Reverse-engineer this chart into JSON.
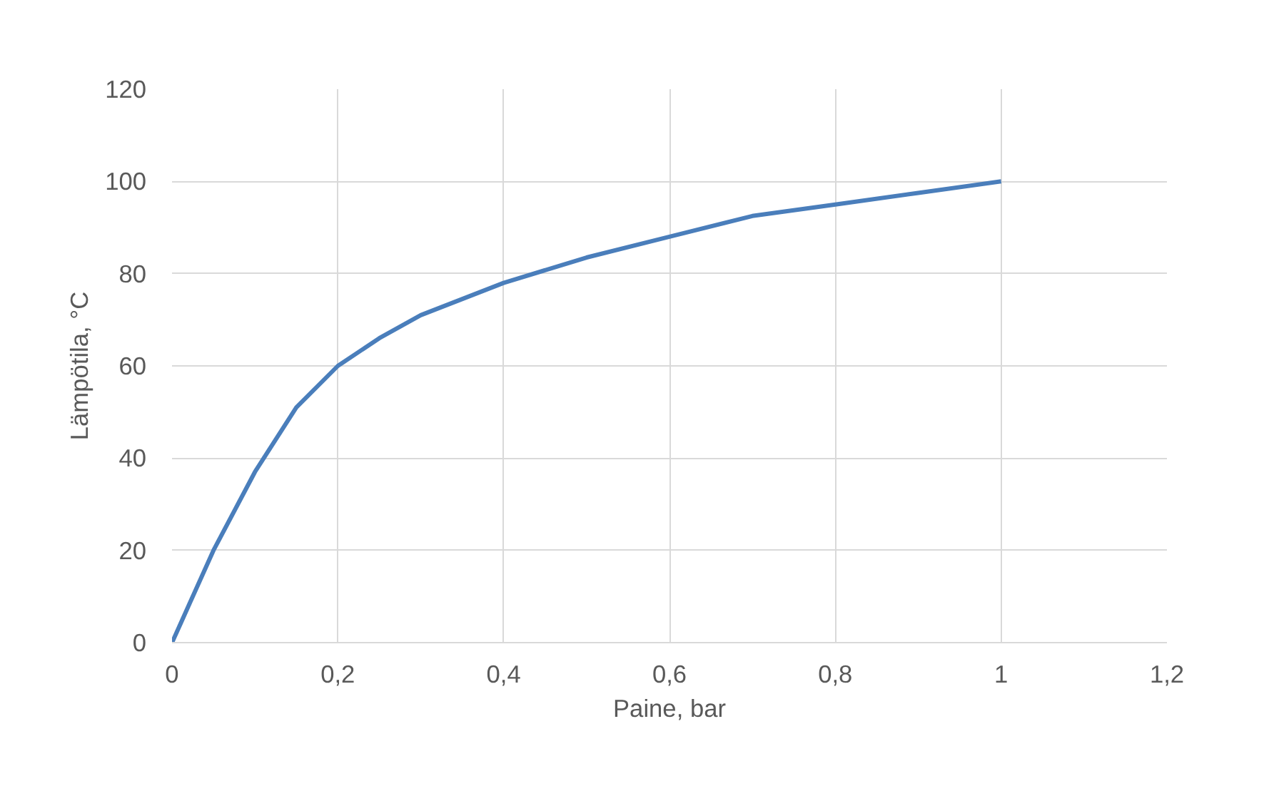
{
  "chart_data": {
    "type": "line",
    "xlabel": "Paine, bar",
    "ylabel": "Lämpötila, °C",
    "x": [
      0,
      0.02,
      0.05,
      0.1,
      0.15,
      0.2,
      0.25,
      0.3,
      0.4,
      0.5,
      0.6,
      0.7,
      0.8,
      0.9,
      1
    ],
    "series": [
      {
        "color": "#4a7ebb",
        "values": [
          0,
          8,
          20,
          37,
          51,
          60,
          66,
          71,
          78,
          83.5,
          88,
          92.5,
          95,
          97.5,
          100
        ]
      }
    ],
    "xlim": [
      0,
      1.2
    ],
    "xticks": [
      0,
      {
        "value": 0.2,
        "label": "0,2"
      },
      {
        "value": 0.4,
        "label": "0,4"
      },
      {
        "value": 0.6,
        "label": "0,6"
      },
      {
        "value": 0.8,
        "label": "0,8"
      },
      1,
      {
        "value": 1.2,
        "label": "1,2"
      }
    ],
    "ylim": [
      0,
      120
    ],
    "yticks": [
      0,
      20,
      40,
      60,
      80,
      100,
      120
    ],
    "grid": true,
    "marker": "none",
    "line_style": "solid"
  }
}
